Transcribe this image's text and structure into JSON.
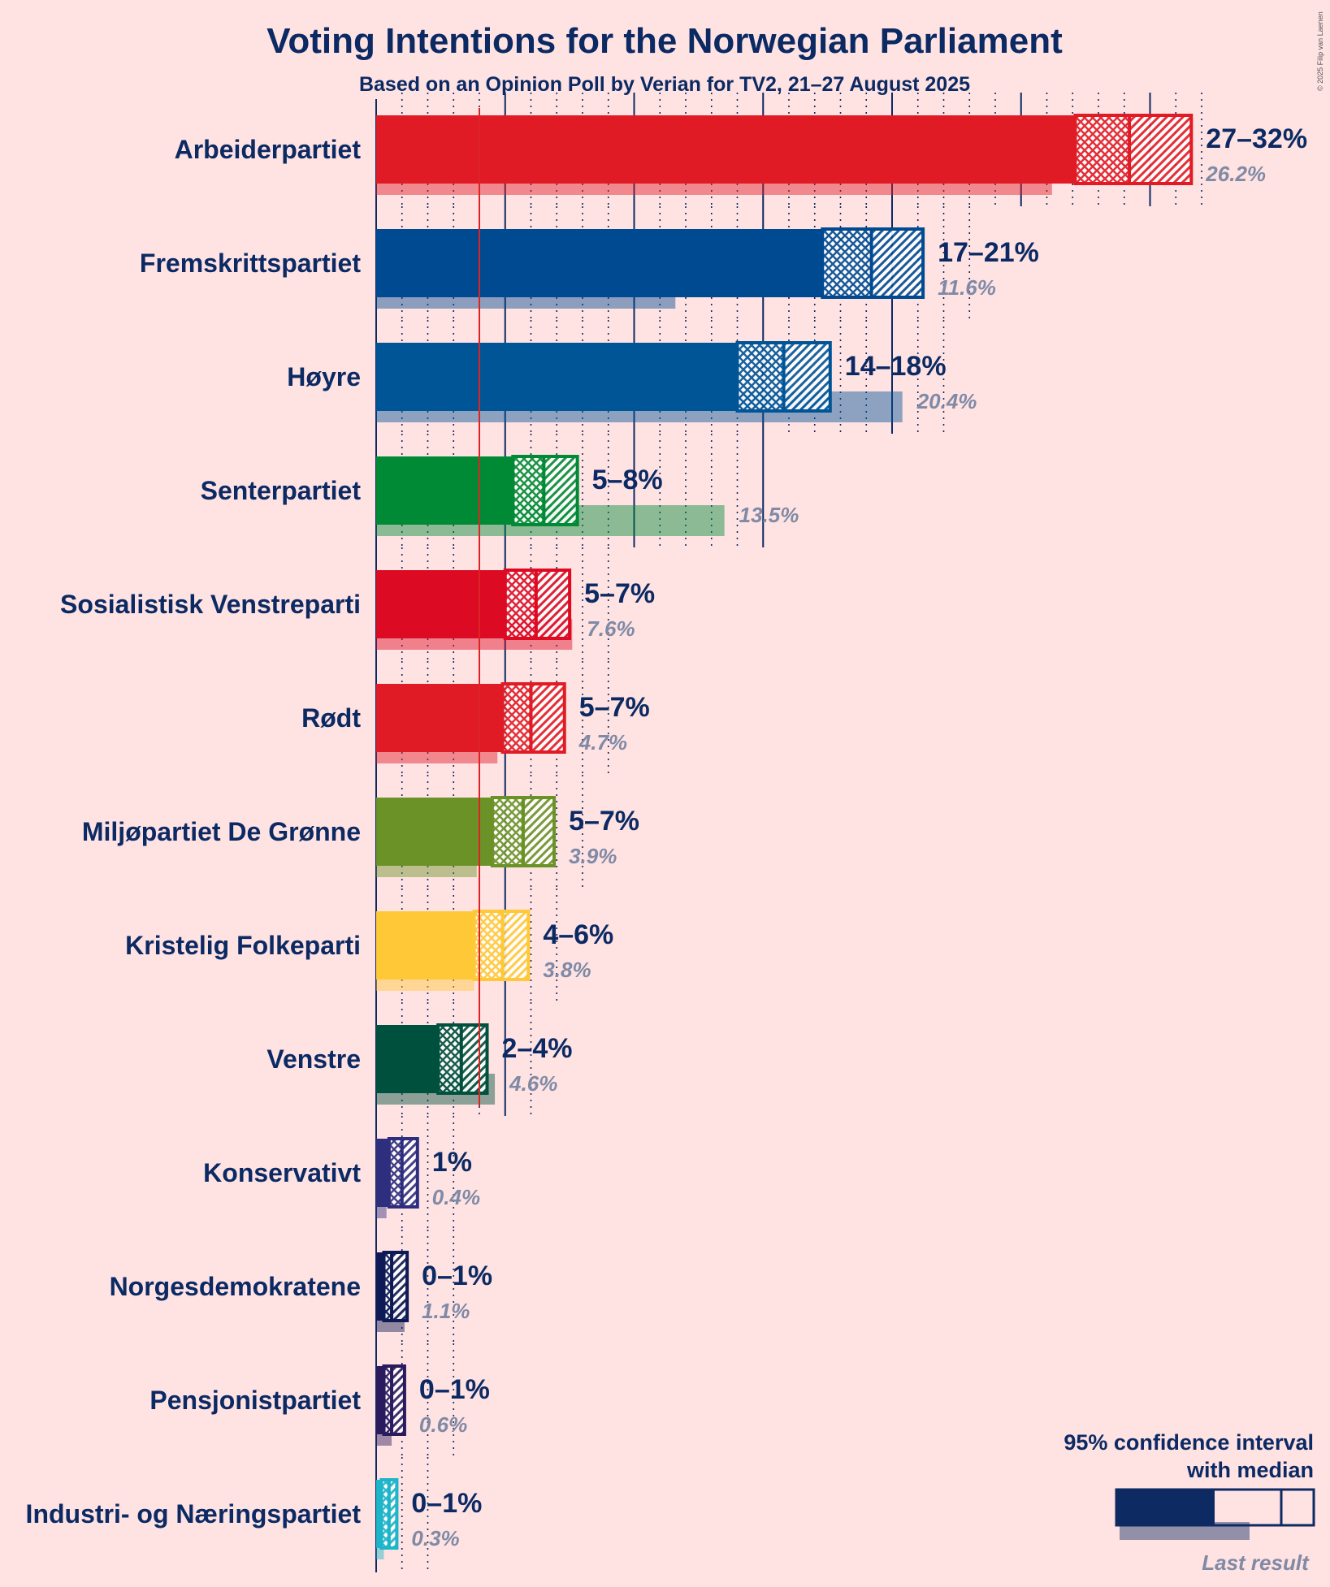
{
  "copyright": "© 2025 Filip van Laenen",
  "chart_data": {
    "type": "bar",
    "orientation": "horizontal",
    "title": "Voting Intentions for the Norwegian Parliament",
    "subtitle": "Based on an Opinion Poll by Verian for TV2, 21–27 August 2025",
    "unit": "%",
    "threshold": 4,
    "xlim": [
      0,
      32
    ],
    "parties": [
      {
        "name": "Arbeiderpartiet",
        "range_label": "27–32%",
        "ci_low": 27.1,
        "median": 29.2,
        "ci_high": 31.6,
        "last": 26.2,
        "last_label": "26.2%",
        "color": "#E11B25"
      },
      {
        "name": "Fremskrittspartiet",
        "range_label": "17–21%",
        "ci_low": 17.3,
        "median": 19.2,
        "ci_high": 21.2,
        "last": 11.6,
        "last_label": "11.6%",
        "color": "#004A91"
      },
      {
        "name": "Høyre",
        "range_label": "14–18%",
        "ci_low": 14.0,
        "median": 15.8,
        "ci_high": 17.6,
        "last": 20.4,
        "last_label": "20.4%",
        "color": "#005597"
      },
      {
        "name": "Senterpartiet",
        "range_label": "5–8%",
        "ci_low": 5.3,
        "median": 6.5,
        "ci_high": 7.8,
        "last": 13.5,
        "last_label": "13.5%",
        "color": "#008A35"
      },
      {
        "name": "Sosialistisk Venstreparti",
        "range_label": "5–7%",
        "ci_low": 5.0,
        "median": 6.2,
        "ci_high": 7.5,
        "last": 7.6,
        "last_label": "7.6%",
        "color": "#DD0A23"
      },
      {
        "name": "Rødt",
        "range_label": "5–7%",
        "ci_low": 4.9,
        "median": 6.0,
        "ci_high": 7.3,
        "last": 4.7,
        "last_label": "4.7%",
        "color": "#E11B25"
      },
      {
        "name": "Miljøpartiet De Grønne",
        "range_label": "5–7%",
        "ci_low": 4.5,
        "median": 5.7,
        "ci_high": 6.9,
        "last": 3.9,
        "last_label": "3.9%",
        "color": "#6A9227"
      },
      {
        "name": "Kristelig Folkeparti",
        "range_label": "4–6%",
        "ci_low": 3.8,
        "median": 4.9,
        "ci_high": 5.9,
        "last": 3.8,
        "last_label": "3.8%",
        "color": "#FFC837"
      },
      {
        "name": "Venstre",
        "range_label": "2–4%",
        "ci_low": 2.4,
        "median": 3.3,
        "ci_high": 4.3,
        "last": 4.6,
        "last_label": "4.6%",
        "color": "#00503E"
      },
      {
        "name": "Konservativt",
        "range_label": "1%",
        "ci_low": 0.5,
        "median": 1.0,
        "ci_high": 1.6,
        "last": 0.4,
        "last_label": "0.4%",
        "color": "#2E2E7E"
      },
      {
        "name": "Norgesdemokratene",
        "range_label": "0–1%",
        "ci_low": 0.3,
        "median": 0.6,
        "ci_high": 1.2,
        "last": 1.1,
        "last_label": "1.1%",
        "color": "#0D1A55"
      },
      {
        "name": "Pensjonistpartiet",
        "range_label": "0–1%",
        "ci_low": 0.3,
        "median": 0.6,
        "ci_high": 1.1,
        "last": 0.6,
        "last_label": "0.6%",
        "color": "#2A1A5E"
      },
      {
        "name": "Industri- og Næringspartiet",
        "range_label": "0–1%",
        "ci_low": 0.2,
        "median": 0.5,
        "ci_high": 0.8,
        "last": 0.3,
        "last_label": "0.3%",
        "color": "#1DB5C9"
      }
    ],
    "legend": {
      "title_line1": "95% confidence interval",
      "title_line2": "with median",
      "last_result": "Last result",
      "color": "#0E2A63"
    }
  }
}
